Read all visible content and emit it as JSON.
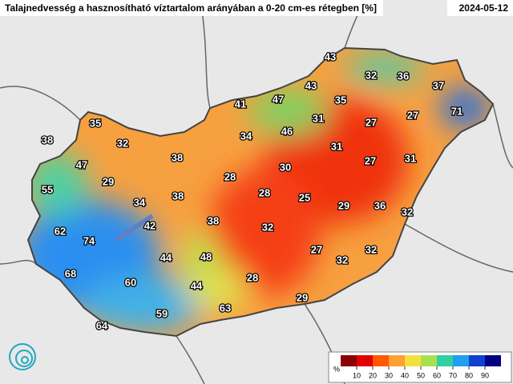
{
  "header": {
    "title": "Talajnedvesség a hasznosítható víztartalom arányában a 0-20 cm-es rétegben [%]",
    "date": "2024-05-12"
  },
  "stations": [
    43,
    32,
    36,
    37,
    71,
    43,
    47,
    41,
    35,
    35,
    31,
    27,
    27,
    46,
    34,
    32,
    38,
    31,
    38,
    47,
    30,
    27,
    31,
    28,
    29,
    55,
    28,
    25,
    34,
    38,
    29,
    36,
    32,
    42,
    38,
    32,
    62,
    74,
    27,
    32,
    44,
    48,
    32,
    68,
    60,
    28,
    44,
    29,
    63,
    59,
    64
  ],
  "legend": {
    "unit": "%",
    "ticks": [
      10,
      20,
      30,
      40,
      50,
      60,
      70,
      80,
      90
    ],
    "colors": [
      "#8b0000",
      "#e00000",
      "#ff5a00",
      "#ffa030",
      "#f4e040",
      "#a8e050",
      "#30d0a0",
      "#20a0f0",
      "#1040d0",
      "#000080"
    ]
  }
}
